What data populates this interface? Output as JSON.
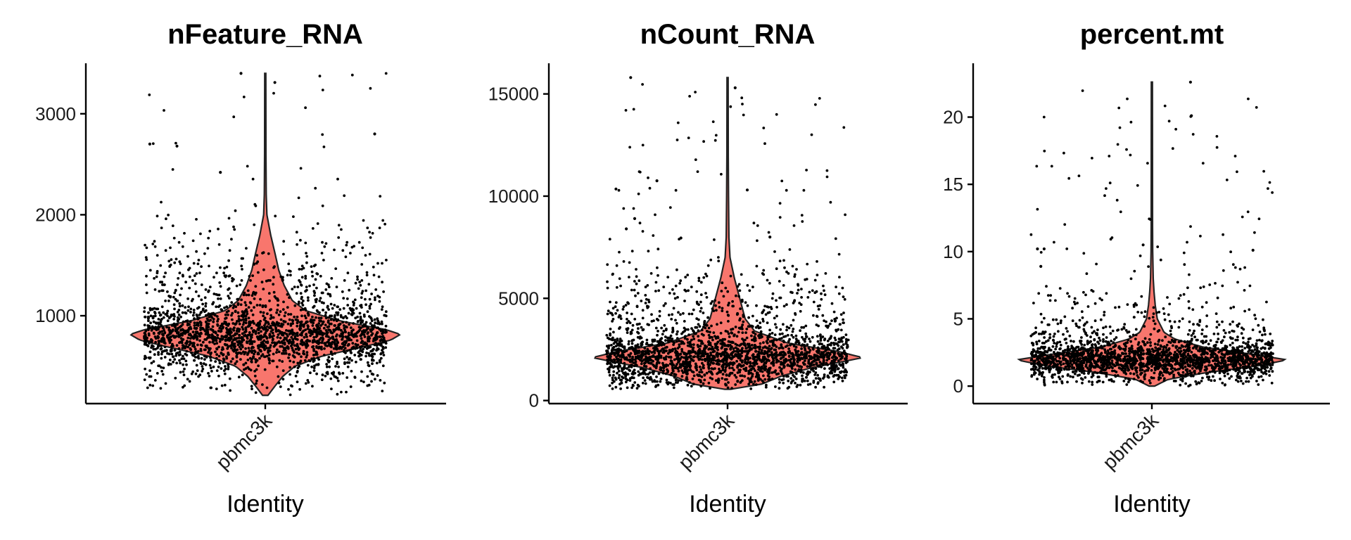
{
  "colors": {
    "violin_fill": "#F8766D",
    "point": "#000000",
    "axis": "#000000"
  },
  "chart_data": [
    {
      "type": "violin",
      "title": "nFeature_RNA",
      "xlabel": "Identity",
      "categories": [
        "pbmc3k"
      ],
      "ylabel": "",
      "ylim": [
        130,
        3500
      ],
      "yticks": [
        1000,
        2000,
        3000
      ],
      "distribution": {
        "median": 815,
        "min": 212,
        "max": 3400,
        "mode": 815
      },
      "density_profile": [
        [
          212,
          0.02
        ],
        [
          300,
          0.07
        ],
        [
          400,
          0.13
        ],
        [
          500,
          0.22
        ],
        [
          600,
          0.42
        ],
        [
          700,
          0.75
        ],
        [
          760,
          0.93
        ],
        [
          815,
          1.0
        ],
        [
          860,
          0.9
        ],
        [
          950,
          0.55
        ],
        [
          1050,
          0.3
        ],
        [
          1150,
          0.2
        ],
        [
          1300,
          0.14
        ],
        [
          1450,
          0.1
        ],
        [
          1600,
          0.075
        ],
        [
          1800,
          0.04
        ],
        [
          2000,
          0.012
        ],
        [
          2200,
          0.007
        ],
        [
          2600,
          0.005
        ],
        [
          3400,
          0.004
        ]
      ],
      "outliers": [
        3310,
        3400,
        2800,
        2700,
        2680,
        2420
      ]
    },
    {
      "type": "violin",
      "title": "nCount_RNA",
      "xlabel": "Identity",
      "categories": [
        "pbmc3k"
      ],
      "ylabel": "",
      "ylim": [
        -150,
        16500
      ],
      "yticks": [
        0,
        5000,
        10000,
        15000
      ],
      "distribution": {
        "median": 2200,
        "min": 550,
        "max": 15800,
        "mode": 2100
      },
      "density_profile": [
        [
          550,
          0.02
        ],
        [
          800,
          0.25
        ],
        [
          1200,
          0.4
        ],
        [
          1600,
          0.62
        ],
        [
          1900,
          0.85
        ],
        [
          2100,
          1.0
        ],
        [
          2400,
          0.82
        ],
        [
          2800,
          0.45
        ],
        [
          3400,
          0.2
        ],
        [
          4000,
          0.13
        ],
        [
          5000,
          0.09
        ],
        [
          6000,
          0.05
        ],
        [
          7000,
          0.018
        ],
        [
          8000,
          0.01
        ],
        [
          10000,
          0.007
        ],
        [
          12000,
          0.005
        ],
        [
          15800,
          0.004
        ]
      ],
      "outliers": [
        15800,
        15300,
        10750,
        10350,
        10300,
        8900,
        8400,
        8000,
        7950
      ]
    },
    {
      "type": "violin",
      "title": "percent.mt",
      "xlabel": "Identity",
      "categories": [
        "pbmc3k"
      ],
      "ylabel": "",
      "ylim": [
        -1.3,
        24
      ],
      "yticks": [
        0,
        5,
        10,
        15,
        20
      ],
      "distribution": {
        "median": 2.0,
        "min": 0,
        "max": 22.6,
        "mode": 1.95
      },
      "density_profile": [
        [
          0,
          0.02
        ],
        [
          0.5,
          0.12
        ],
        [
          1.0,
          0.4
        ],
        [
          1.5,
          0.78
        ],
        [
          1.95,
          1.0
        ],
        [
          2.4,
          0.72
        ],
        [
          2.9,
          0.38
        ],
        [
          3.5,
          0.17
        ],
        [
          4.0,
          0.09
        ],
        [
          5.0,
          0.04
        ],
        [
          6.0,
          0.025
        ],
        [
          7.0,
          0.016
        ],
        [
          8.0,
          0.01
        ],
        [
          10.0,
          0.006
        ],
        [
          12.0,
          0.005
        ],
        [
          22.6,
          0.004
        ]
      ],
      "outliers": [
        22.6,
        20.1,
        10.5,
        10.2,
        10.2,
        10.1,
        8.9
      ]
    }
  ]
}
